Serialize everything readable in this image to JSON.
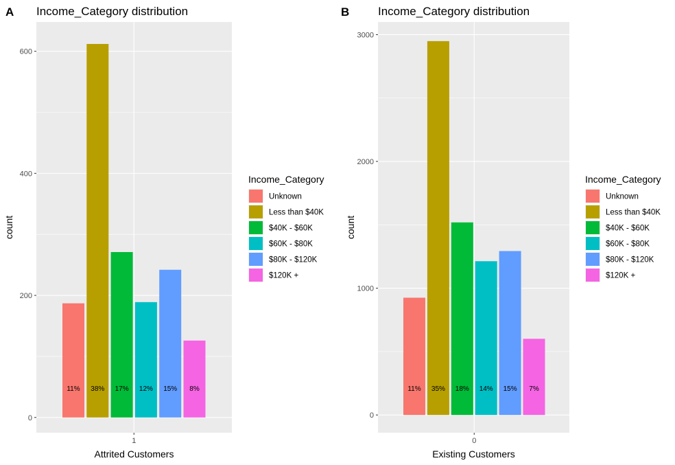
{
  "legend": {
    "title": "Income_Category",
    "entries": [
      {
        "label": "Unknown",
        "color": "#F8766D"
      },
      {
        "label": "Less than $40K",
        "color": "#B79F00"
      },
      {
        "label": "$40K - $60K",
        "color": "#00BA38"
      },
      {
        "label": "$60K - $80K",
        "color": "#00BFC4"
      },
      {
        "label": "$80K - $120K",
        "color": "#619CFF"
      },
      {
        "label": "$120K +",
        "color": "#F564E3"
      }
    ]
  },
  "chart_data": [
    {
      "type": "bar",
      "panel_tag": "A",
      "title": "Income_Category distribution",
      "xlabel": "Attrited Customers",
      "ylabel": "count",
      "x_tick": "1",
      "categories": [
        "Unknown",
        "Less than $40K",
        "$40K - $60K",
        "$60K - $80K",
        "$80K - $120K",
        "$120K +"
      ],
      "values": [
        187,
        612,
        271,
        189,
        242,
        126
      ],
      "labels": [
        "11%",
        "38%",
        "17%",
        "12%",
        "15%",
        "8%"
      ],
      "ylim": [
        -25,
        648
      ],
      "yticks": [
        0,
        200,
        400,
        600
      ],
      "grid": true,
      "legend_position": "right"
    },
    {
      "type": "bar",
      "panel_tag": "B",
      "title": "Income_Category distribution",
      "xlabel": "Existing Customers",
      "ylabel": "count",
      "x_tick": "0",
      "categories": [
        "Unknown",
        "Less than $40K",
        "$40K - $60K",
        "$60K - $80K",
        "$80K - $120K",
        "$120K +"
      ],
      "values": [
        925,
        2949,
        1519,
        1213,
        1293,
        601
      ],
      "labels": [
        "11%",
        "35%",
        "18%",
        "14%",
        "15%",
        "7%"
      ],
      "ylim": [
        -140,
        3100
      ],
      "yticks": [
        0,
        1000,
        2000,
        3000
      ],
      "grid": true,
      "legend_position": "right"
    }
  ]
}
